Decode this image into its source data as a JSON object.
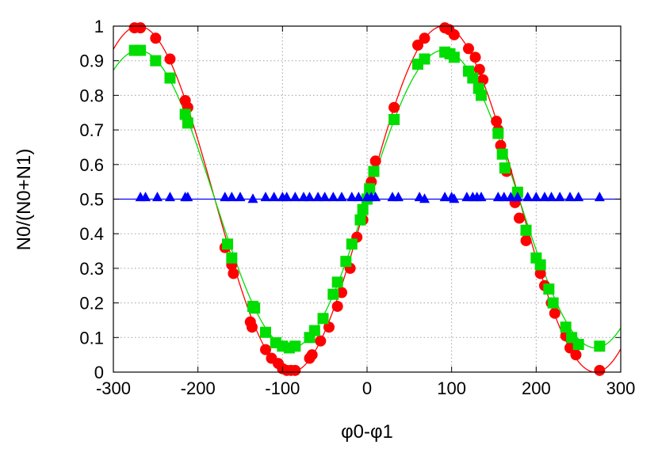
{
  "chart_data": {
    "type": "scatter",
    "xlabel": "φ0-φ1",
    "ylabel": "N0/(N0+N1)",
    "xlim": [
      -300,
      300
    ],
    "ylim": [
      0,
      1
    ],
    "x_ticks": [
      "-300",
      "-200",
      "-100",
      "0",
      "100",
      "200",
      "300"
    ],
    "y_ticks": [
      "0",
      "0.1",
      "0.2",
      "0.3",
      "0.4",
      "0.5",
      "0.6",
      "0.7",
      "0.8",
      "0.9",
      "1"
    ],
    "grid": true,
    "legend": "none",
    "series": [
      {
        "marker": "circle",
        "color": "#ff0000",
        "fit": {
          "type": "cosine",
          "offset": 0.5,
          "amplitude": 0.5,
          "period": 360,
          "phase_deg": 0
        },
        "points": [
          [
            -275,
            0.995
          ],
          [
            -268,
            0.995
          ],
          [
            -250,
            0.965
          ],
          [
            -233,
            0.905
          ],
          [
            -215,
            0.785
          ],
          [
            -212,
            0.765
          ],
          [
            -168,
            0.36
          ],
          [
            -160,
            0.31
          ],
          [
            -158,
            0.285
          ],
          [
            -138,
            0.145
          ],
          [
            -136,
            0.13
          ],
          [
            -120,
            0.065
          ],
          [
            -113,
            0.04
          ],
          [
            -105,
            0.025
          ],
          [
            -100,
            0.01
          ],
          [
            -95,
            0.005
          ],
          [
            -90,
            0.005
          ],
          [
            -85,
            0.005
          ],
          [
            -68,
            0.04
          ],
          [
            -65,
            0.05
          ],
          [
            -55,
            0.09
          ],
          [
            -45,
            0.13
          ],
          [
            -35,
            0.19
          ],
          [
            -30,
            0.23
          ],
          [
            -20,
            0.3
          ],
          [
            -12,
            0.39
          ],
          [
            -5,
            0.44
          ],
          [
            0,
            0.5
          ],
          [
            5,
            0.55
          ],
          [
            10,
            0.61
          ],
          [
            32,
            0.765
          ],
          [
            60,
            0.945
          ],
          [
            68,
            0.965
          ],
          [
            92,
            0.995
          ],
          [
            97,
            0.99
          ],
          [
            103,
            0.975
          ],
          [
            120,
            0.935
          ],
          [
            128,
            0.91
          ],
          [
            133,
            0.875
          ],
          [
            137,
            0.845
          ],
          [
            153,
            0.725
          ],
          [
            155,
            0.7
          ],
          [
            158,
            0.655
          ],
          [
            165,
            0.58
          ],
          [
            175,
            0.49
          ],
          [
            180,
            0.445
          ],
          [
            188,
            0.38
          ],
          [
            205,
            0.285
          ],
          [
            210,
            0.25
          ],
          [
            218,
            0.2
          ],
          [
            222,
            0.17
          ],
          [
            235,
            0.105
          ],
          [
            240,
            0.07
          ],
          [
            247,
            0.05
          ],
          [
            275,
            0.005
          ]
        ]
      },
      {
        "marker": "square",
        "color": "#00dd00",
        "fit": {
          "type": "cosine",
          "offset": 0.5,
          "amplitude": 0.43,
          "period": 360,
          "phase_deg": 0
        },
        "points": [
          [
            -275,
            0.93
          ],
          [
            -268,
            0.93
          ],
          [
            -250,
            0.9
          ],
          [
            -233,
            0.85
          ],
          [
            -215,
            0.745
          ],
          [
            -212,
            0.72
          ],
          [
            -165,
            0.37
          ],
          [
            -160,
            0.33
          ],
          [
            -135,
            0.19
          ],
          [
            -133,
            0.185
          ],
          [
            -120,
            0.115
          ],
          [
            -108,
            0.085
          ],
          [
            -100,
            0.075
          ],
          [
            -92,
            0.07
          ],
          [
            -85,
            0.075
          ],
          [
            -68,
            0.1
          ],
          [
            -62,
            0.12
          ],
          [
            -52,
            0.155
          ],
          [
            -40,
            0.225
          ],
          [
            -35,
            0.26
          ],
          [
            -25,
            0.32
          ],
          [
            -18,
            0.37
          ],
          [
            -8,
            0.44
          ],
          [
            -5,
            0.47
          ],
          [
            0,
            0.5
          ],
          [
            3,
            0.53
          ],
          [
            8,
            0.58
          ],
          [
            32,
            0.73
          ],
          [
            60,
            0.89
          ],
          [
            68,
            0.905
          ],
          [
            92,
            0.925
          ],
          [
            98,
            0.92
          ],
          [
            103,
            0.91
          ],
          [
            120,
            0.87
          ],
          [
            125,
            0.85
          ],
          [
            132,
            0.82
          ],
          [
            135,
            0.8
          ],
          [
            155,
            0.69
          ],
          [
            160,
            0.63
          ],
          [
            163,
            0.59
          ],
          [
            178,
            0.52
          ],
          [
            188,
            0.41
          ],
          [
            200,
            0.33
          ],
          [
            205,
            0.31
          ],
          [
            215,
            0.24
          ],
          [
            220,
            0.2
          ],
          [
            235,
            0.13
          ],
          [
            242,
            0.1
          ],
          [
            250,
            0.08
          ],
          [
            275,
            0.075
          ]
        ]
      },
      {
        "marker": "triangle",
        "color": "#0000ff",
        "fit": {
          "type": "constant",
          "value": 0.5
        },
        "points": [
          [
            -268,
            0.505
          ],
          [
            -262,
            0.505
          ],
          [
            -248,
            0.505
          ],
          [
            -233,
            0.505
          ],
          [
            -215,
            0.505
          ],
          [
            -212,
            0.505
          ],
          [
            -168,
            0.505
          ],
          [
            -160,
            0.505
          ],
          [
            -150,
            0.505
          ],
          [
            -135,
            0.5
          ],
          [
            -120,
            0.505
          ],
          [
            -110,
            0.505
          ],
          [
            -100,
            0.505
          ],
          [
            -95,
            0.505
          ],
          [
            -85,
            0.505
          ],
          [
            -75,
            0.505
          ],
          [
            -68,
            0.505
          ],
          [
            -58,
            0.505
          ],
          [
            -50,
            0.505
          ],
          [
            -40,
            0.505
          ],
          [
            -30,
            0.505
          ],
          [
            -18,
            0.505
          ],
          [
            -10,
            0.505
          ],
          [
            0,
            0.505
          ],
          [
            5,
            0.505
          ],
          [
            10,
            0.505
          ],
          [
            30,
            0.505
          ],
          [
            37,
            0.505
          ],
          [
            62,
            0.505
          ],
          [
            68,
            0.5
          ],
          [
            92,
            0.505
          ],
          [
            100,
            0.505
          ],
          [
            103,
            0.5
          ],
          [
            118,
            0.505
          ],
          [
            125,
            0.505
          ],
          [
            130,
            0.505
          ],
          [
            135,
            0.505
          ],
          [
            155,
            0.505
          ],
          [
            162,
            0.505
          ],
          [
            170,
            0.505
          ],
          [
            178,
            0.505
          ],
          [
            190,
            0.505
          ],
          [
            200,
            0.505
          ],
          [
            210,
            0.505
          ],
          [
            218,
            0.505
          ],
          [
            228,
            0.505
          ],
          [
            240,
            0.505
          ],
          [
            250,
            0.505
          ],
          [
            275,
            0.505
          ]
        ]
      }
    ]
  }
}
